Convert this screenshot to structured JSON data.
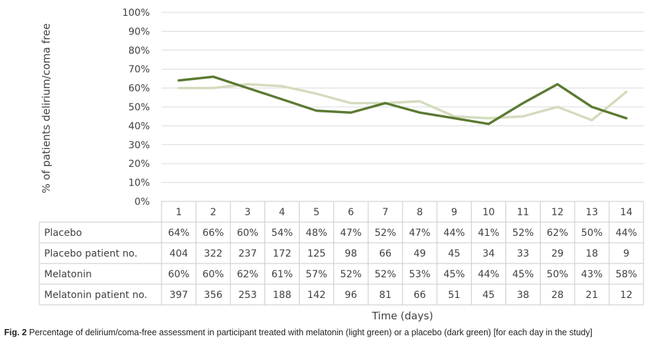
{
  "chart_data": {
    "type": "line",
    "ylabel": "% of patients delirium/coma free",
    "xlabel": "Time (days)",
    "ylim": [
      0,
      100
    ],
    "y_ticks": [
      "0%",
      "10%",
      "20%",
      "30%",
      "40%",
      "50%",
      "60%",
      "70%",
      "80%",
      "90%",
      "100%"
    ],
    "categories": [
      "1",
      "2",
      "3",
      "4",
      "5",
      "6",
      "7",
      "8",
      "9",
      "10",
      "11",
      "12",
      "13",
      "14"
    ],
    "grid": true,
    "series": [
      {
        "name": "Placebo",
        "color": "#5b7a32",
        "values": [
          64,
          66,
          60,
          54,
          48,
          47,
          52,
          47,
          44,
          41,
          52,
          62,
          50,
          44
        ],
        "display": [
          "64%",
          "66%",
          "60%",
          "54%",
          "48%",
          "47%",
          "52%",
          "47%",
          "44%",
          "41%",
          "52%",
          "62%",
          "50%",
          "44%"
        ]
      },
      {
        "name": "Melatonin",
        "color": "#d3dcbd",
        "values": [
          60,
          60,
          62,
          61,
          57,
          52,
          52,
          53,
          45,
          44,
          45,
          50,
          43,
          58
        ],
        "display": [
          "60%",
          "60%",
          "62%",
          "61%",
          "57%",
          "52%",
          "52%",
          "53%",
          "45%",
          "44%",
          "45%",
          "50%",
          "43%",
          "58%"
        ]
      }
    ],
    "table_rows": [
      {
        "label": "Placebo",
        "cells": [
          "64%",
          "66%",
          "60%",
          "54%",
          "48%",
          "47%",
          "52%",
          "47%",
          "44%",
          "41%",
          "52%",
          "62%",
          "50%",
          "44%"
        ]
      },
      {
        "label": "Placebo patient no.",
        "cells": [
          "404",
          "322",
          "237",
          "172",
          "125",
          "98",
          "66",
          "49",
          "45",
          "34",
          "33",
          "29",
          "18",
          "9"
        ]
      },
      {
        "label": "Melatonin",
        "cells": [
          "60%",
          "60%",
          "62%",
          "61%",
          "57%",
          "52%",
          "52%",
          "53%",
          "45%",
          "44%",
          "45%",
          "50%",
          "43%",
          "58%"
        ]
      },
      {
        "label": "Melatonin patient no.",
        "cells": [
          "397",
          "356",
          "253",
          "188",
          "142",
          "96",
          "81",
          "66",
          "51",
          "45",
          "38",
          "28",
          "21",
          "12"
        ]
      }
    ]
  },
  "caption": {
    "label": "Fig. 2",
    "text": " Percentage of delirium/coma-free assessment in participant treated with melatonin (light green) or a placebo (dark green) [for each day in the study]"
  },
  "colors": {
    "grid": "#d9d9d9",
    "table_border": "#c9c9c9",
    "text": "#404040"
  }
}
